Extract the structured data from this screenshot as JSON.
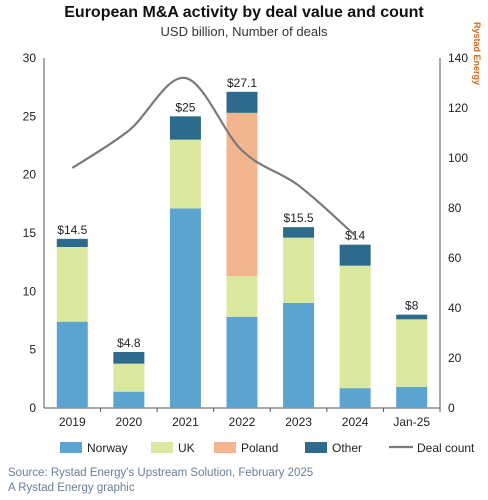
{
  "header": {
    "title": "European M&A activity by deal value and count",
    "subtitle": "USD billion, Number of deals",
    "brand": "Rystad Energy"
  },
  "footer": {
    "source": "Source: Rystad Energy's Upstream Solution, February 2025",
    "credit": "A Rystad Energy graphic"
  },
  "chart_data": {
    "type": "bar",
    "stacked": true,
    "categories": [
      "2019",
      "2020",
      "2021",
      "2022",
      "2023",
      "2024",
      "Jan-25"
    ],
    "series": [
      {
        "name": "Norway",
        "color": "#5ba4cf",
        "values": [
          7.4,
          1.4,
          17.1,
          7.8,
          9.0,
          1.7,
          1.8
        ]
      },
      {
        "name": "UK",
        "color": "#dbe8a0",
        "values": [
          6.4,
          2.4,
          5.9,
          3.5,
          5.6,
          10.5,
          5.8
        ]
      },
      {
        "name": "Poland",
        "color": "#f3b58e",
        "values": [
          0,
          0,
          0,
          14.0,
          0,
          0,
          0
        ]
      },
      {
        "name": "Other",
        "color": "#2e6a8c",
        "values": [
          0.7,
          1.0,
          2.0,
          1.8,
          0.9,
          1.8,
          0.4
        ]
      }
    ],
    "totals": [
      "$14.5",
      "$4.8",
      "$25",
      "$27.1",
      "$15.5",
      "$14",
      "$8"
    ],
    "line": {
      "name": "Deal count",
      "color": "#7a7a7a",
      "values": [
        96,
        111,
        132,
        103,
        89,
        69,
        null
      ]
    },
    "y_left": {
      "min": 0,
      "max": 30,
      "ticks": [
        0,
        5,
        10,
        15,
        20,
        25,
        30
      ]
    },
    "y_right": {
      "min": 0,
      "max": 140,
      "ticks": [
        0,
        20,
        40,
        60,
        80,
        100,
        120,
        140
      ]
    },
    "legend_position": "bottom"
  }
}
